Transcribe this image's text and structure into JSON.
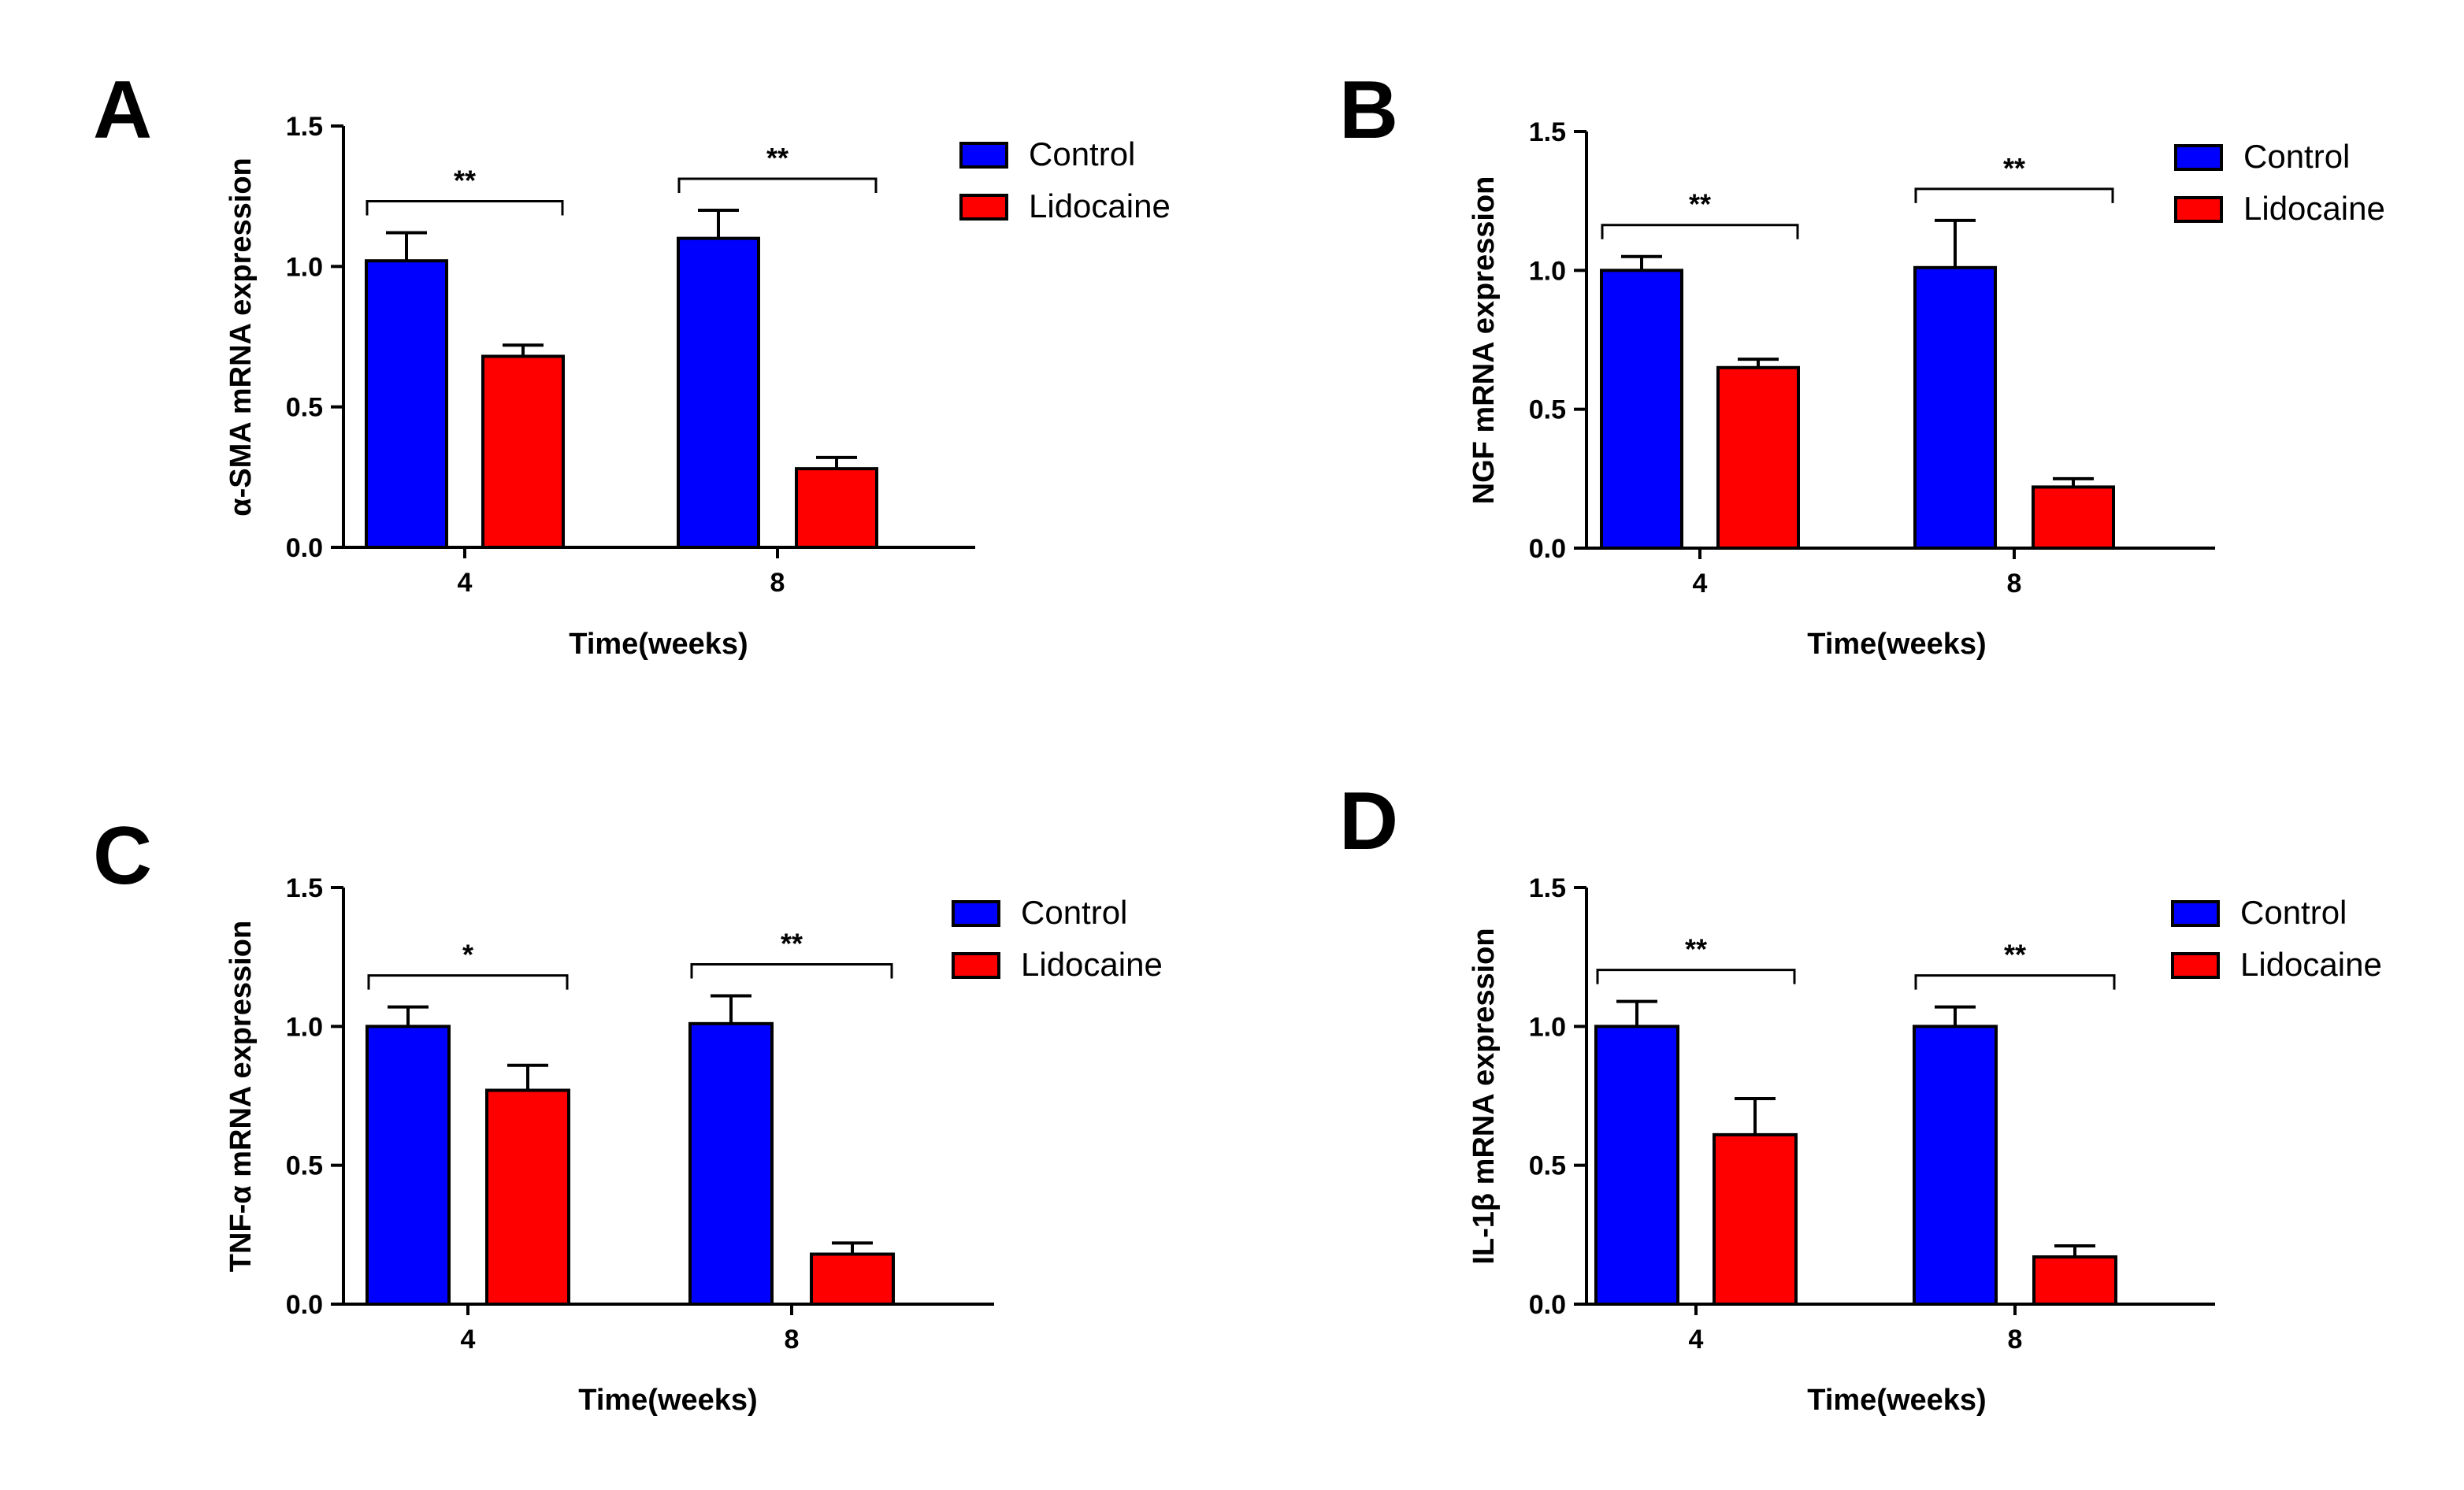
{
  "figure_title": "",
  "chart_data": [
    {
      "panel": "A",
      "type": "bar",
      "title": "",
      "xlabel": "Time(weeks)",
      "ylabel": "α-SMA mRNA expression",
      "ylim": [
        0,
        1.5
      ],
      "yticks": [
        "0.0",
        "0.5",
        "1.0",
        "1.5"
      ],
      "categories": [
        "4",
        "8"
      ],
      "series": [
        {
          "name": "Control",
          "color": "#0000ff",
          "values": [
            1.02,
            1.1
          ],
          "errors": [
            0.1,
            0.1
          ]
        },
        {
          "name": "Lidocaine",
          "color": "#ff0000",
          "values": [
            0.68,
            0.28
          ],
          "errors": [
            0.04,
            0.04
          ]
        }
      ],
      "significance": [
        "**",
        "**"
      ]
    },
    {
      "panel": "B",
      "type": "bar",
      "title": "",
      "xlabel": "Time(weeks)",
      "ylabel": "NGF mRNA expression",
      "ylim": [
        0,
        1.5
      ],
      "yticks": [
        "0.0",
        "0.5",
        "1.0",
        "1.5"
      ],
      "categories": [
        "4",
        "8"
      ],
      "series": [
        {
          "name": "Control",
          "color": "#0000ff",
          "values": [
            1.0,
            1.01
          ],
          "errors": [
            0.05,
            0.17
          ]
        },
        {
          "name": "Lidocaine",
          "color": "#ff0000",
          "values": [
            0.65,
            0.22
          ],
          "errors": [
            0.03,
            0.03
          ]
        }
      ],
      "significance": [
        "**",
        "**"
      ]
    },
    {
      "panel": "C",
      "type": "bar",
      "title": "",
      "xlabel": "Time(weeks)",
      "ylabel": "TNF-α mRNA expression",
      "ylim": [
        0,
        1.5
      ],
      "yticks": [
        "0.0",
        "0.5",
        "1.0",
        "1.5"
      ],
      "categories": [
        "4",
        "8"
      ],
      "series": [
        {
          "name": "Control",
          "color": "#0000ff",
          "values": [
            1.0,
            1.01
          ],
          "errors": [
            0.07,
            0.1
          ]
        },
        {
          "name": "Lidocaine",
          "color": "#ff0000",
          "values": [
            0.77,
            0.18
          ],
          "errors": [
            0.09,
            0.04
          ]
        }
      ],
      "significance": [
        "*",
        "**"
      ]
    },
    {
      "panel": "D",
      "type": "bar",
      "title": "",
      "xlabel": "Time(weeks)",
      "ylabel": "IL-1β mRNA expression",
      "ylim": [
        0,
        1.5
      ],
      "yticks": [
        "0.0",
        "0.5",
        "1.0",
        "1.5"
      ],
      "categories": [
        "4",
        "8"
      ],
      "series": [
        {
          "name": "Control",
          "color": "#0000ff",
          "values": [
            1.0,
            1.0
          ],
          "errors": [
            0.09,
            0.07
          ]
        },
        {
          "name": "Lidocaine",
          "color": "#ff0000",
          "values": [
            0.61,
            0.17
          ],
          "errors": [
            0.13,
            0.04
          ]
        }
      ],
      "significance": [
        "**",
        "**"
      ]
    }
  ]
}
